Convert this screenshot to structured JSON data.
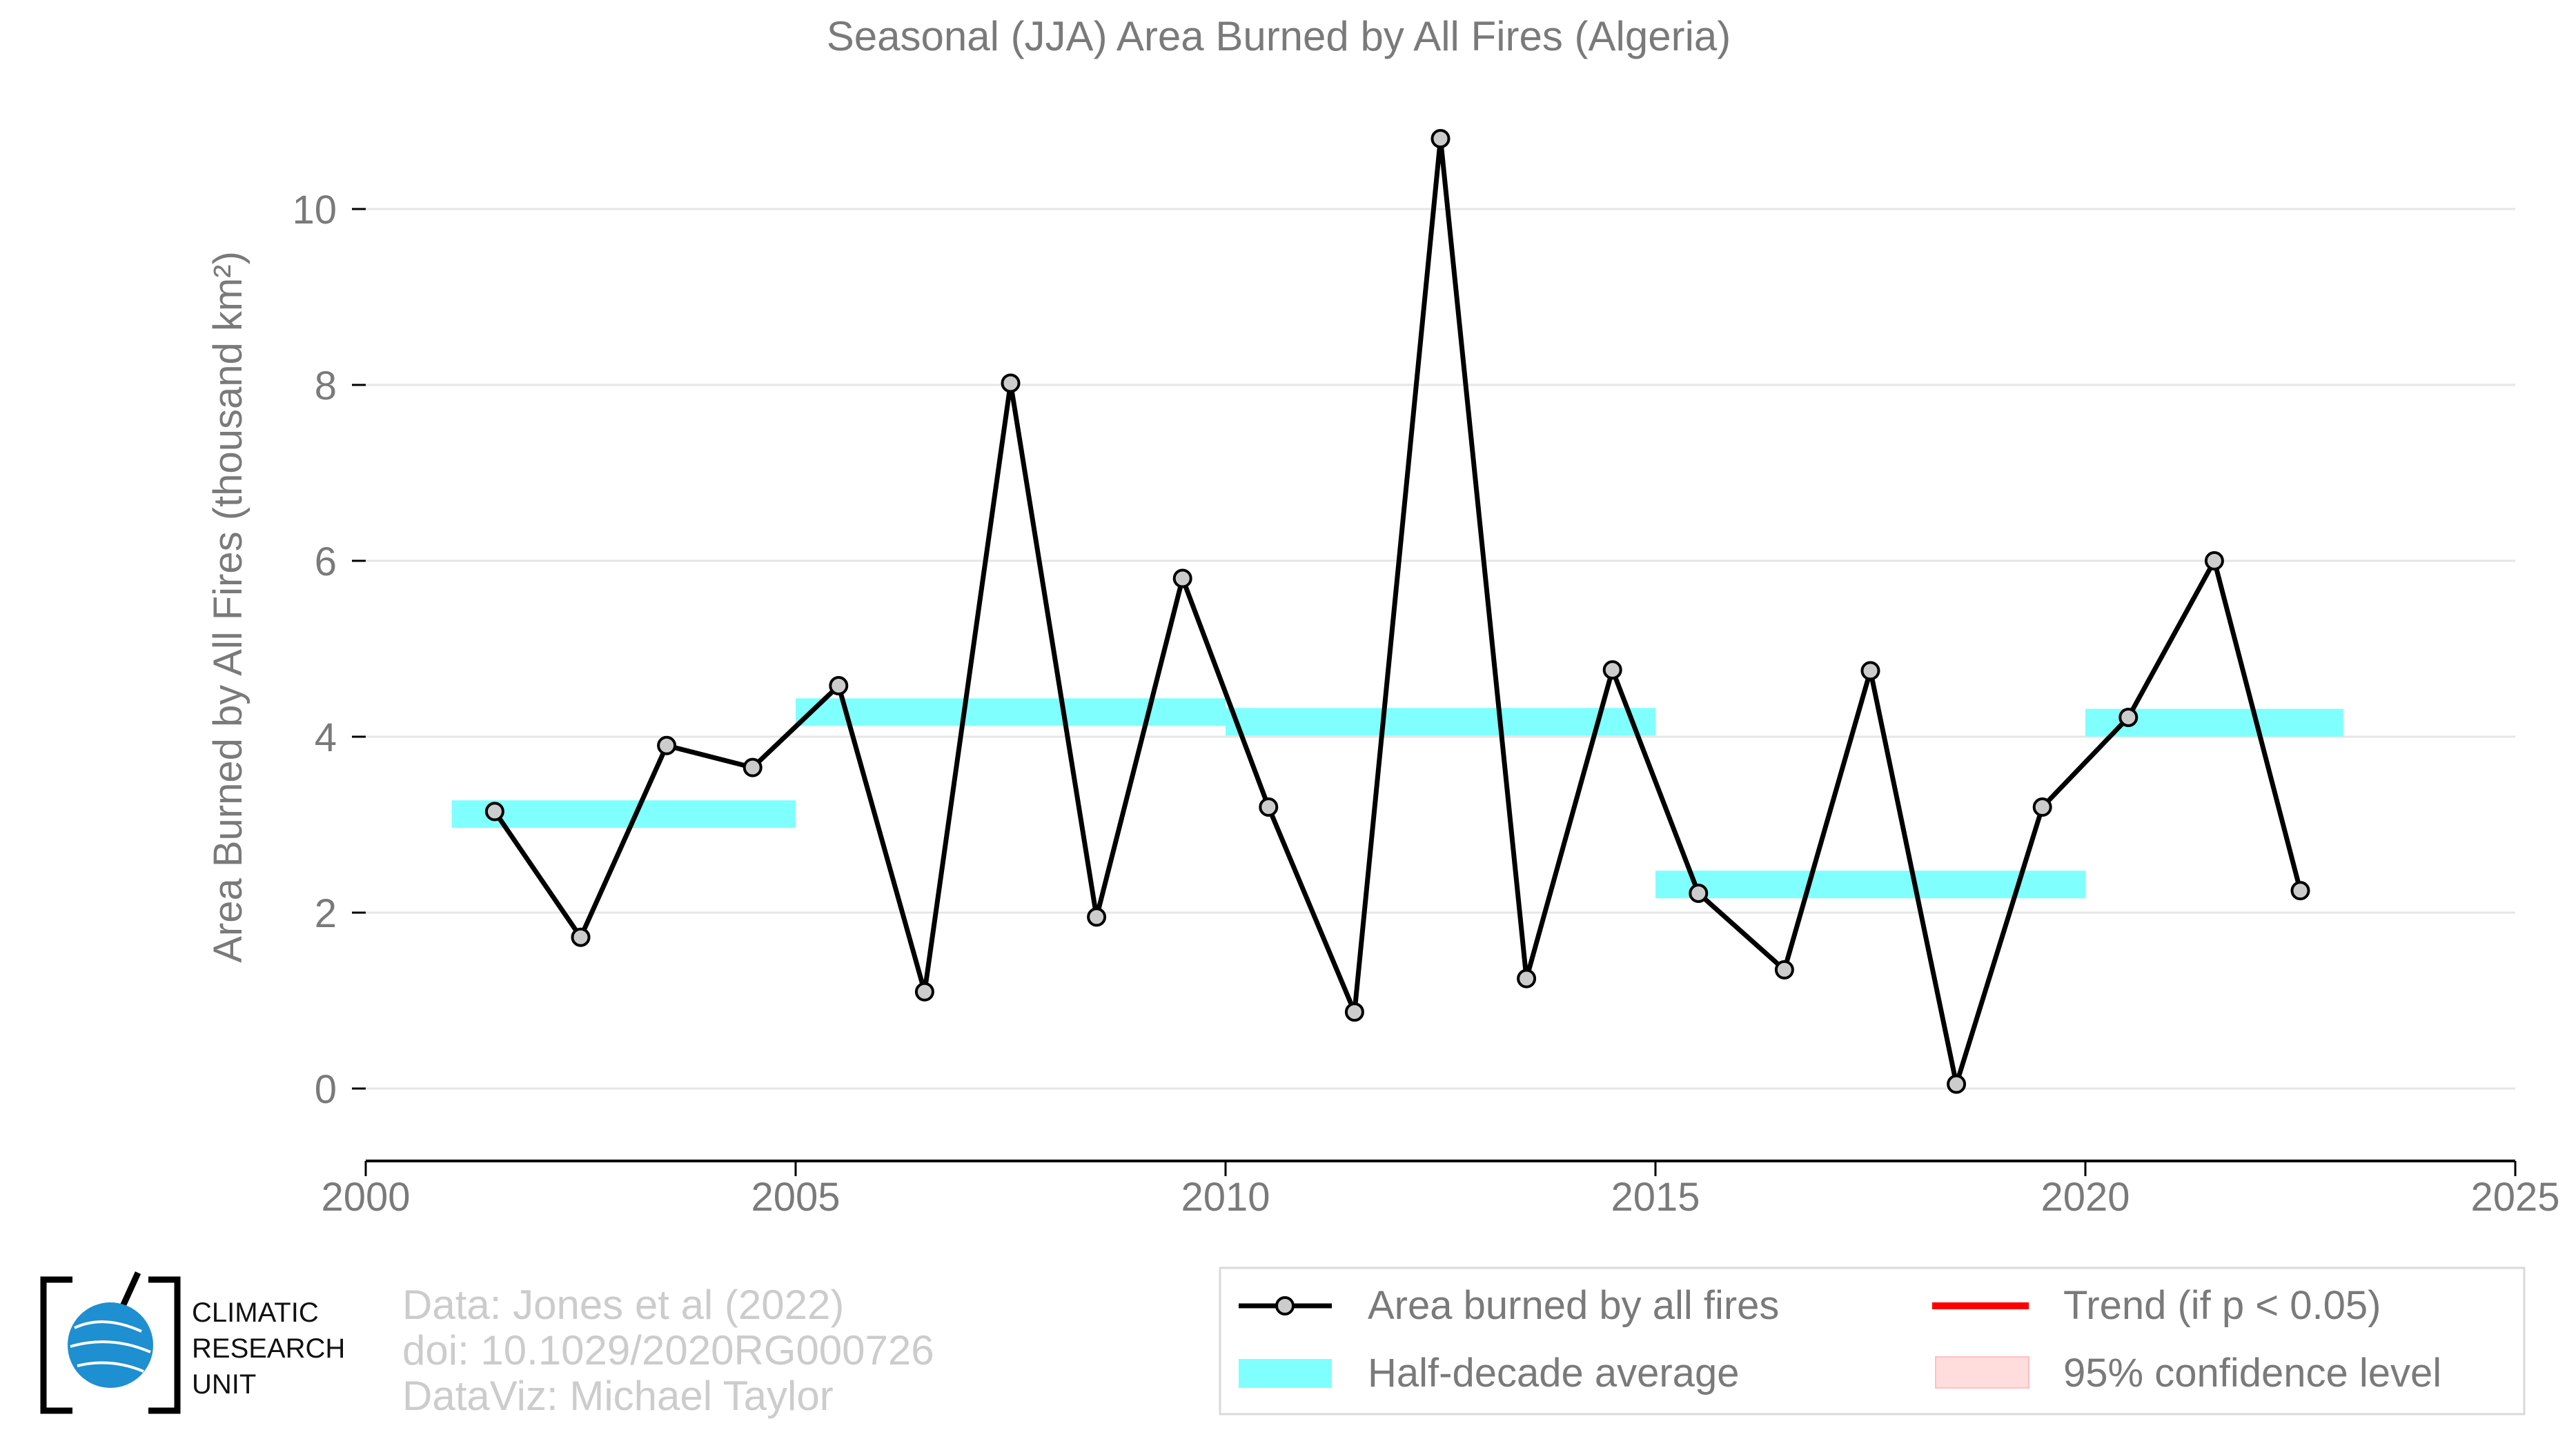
{
  "chart_data": {
    "type": "line",
    "title": "Seasonal (JJA) Area Burned by All Fires (Algeria)",
    "ylabel": "Area Burned by All Fires (thousand km²)",
    "xlabel": "",
    "xlim": [
      2000,
      2025
    ],
    "ylim": [
      -0.8,
      11.2
    ],
    "x_ticks": [
      2000,
      2005,
      2010,
      2015,
      2020,
      2025
    ],
    "y_ticks": [
      0,
      2,
      4,
      6,
      8,
      10
    ],
    "grid": "horizontal",
    "series": [
      {
        "name": "Area burned by all fires",
        "type": "line",
        "color": "#000000",
        "marker_fill": "#cccccc",
        "x": [
          2001.5,
          2002.5,
          2003.5,
          2004.5,
          2005.5,
          2006.5,
          2007.5,
          2008.5,
          2009.5,
          2010.5,
          2011.5,
          2012.5,
          2013.5,
          2014.5,
          2015.5,
          2016.5,
          2017.5,
          2018.5,
          2019.5,
          2020.5,
          2021.5,
          2022.5
        ],
        "y": [
          3.15,
          1.72,
          3.9,
          3.65,
          4.58,
          1.1,
          8.02,
          1.95,
          5.8,
          3.2,
          0.87,
          10.8,
          1.25,
          4.76,
          2.22,
          1.35,
          4.75,
          0.05,
          3.2,
          4.22,
          6.0,
          2.25
        ]
      },
      {
        "name": "Half-decade average",
        "type": "bars",
        "color": "#80ffff",
        "segments": [
          {
            "x0": 2001,
            "x1": 2005,
            "y": 3.12
          },
          {
            "x0": 2005,
            "x1": 2010,
            "y": 4.28
          },
          {
            "x0": 2010,
            "x1": 2015,
            "y": 4.17
          },
          {
            "x0": 2015,
            "x1": 2020,
            "y": 2.32
          },
          {
            "x0": 2020,
            "x1": 2023,
            "y": 4.16
          }
        ]
      }
    ],
    "legend": {
      "placement": "bottom-right",
      "entries": [
        {
          "label": "Area burned by all fires",
          "kind": "line-marker",
          "color": "#000000"
        },
        {
          "label": "Trend (if p < 0.05)",
          "kind": "line",
          "color": "#ff0000"
        },
        {
          "label": "Half-decade average",
          "kind": "patch",
          "color": "#80ffff"
        },
        {
          "label": "95% confidence level",
          "kind": "patch",
          "color": "#ffdddd"
        }
      ]
    }
  },
  "footer": {
    "credit_1": "Data: Jones et al (2022)",
    "credit_2": "doi: 10.1029/2020RG000726",
    "credit_3": "DataViz: Michael Taylor"
  },
  "logo": {
    "line_1": "CLIMATIC",
    "line_2": "RESEARCH",
    "line_3": "UNIT"
  }
}
